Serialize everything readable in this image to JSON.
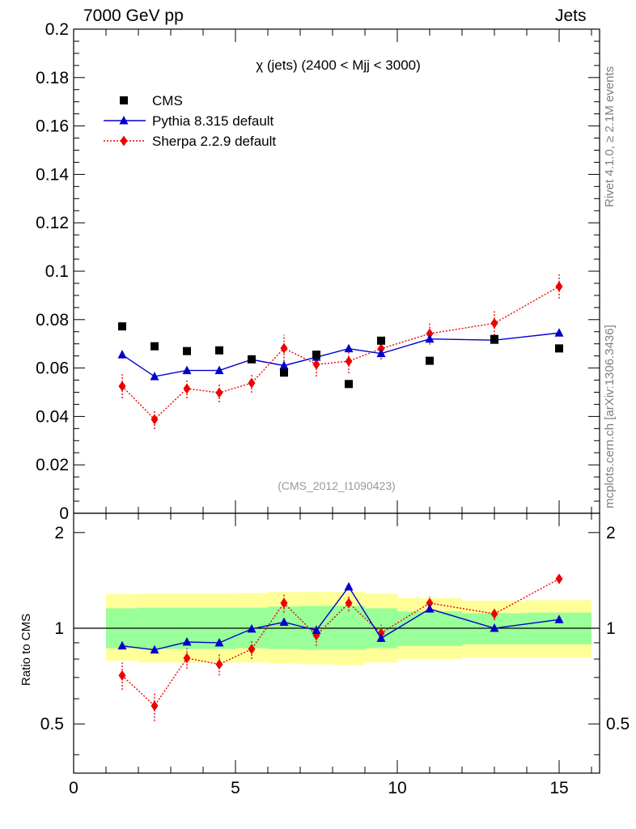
{
  "header": {
    "left": "7000 GeV pp",
    "right": "Jets"
  },
  "side_labels": {
    "rivet": "Rivet 4.1.0, ≥ 2.1M events",
    "mcplots": "mcplots.cern.ch [arXiv:1306.3436]"
  },
  "chart_data": {
    "type": "scatter",
    "title": "χ (jets) (2400 < Mjj < 3000)",
    "watermark": "(CMS_2012_I1090423)",
    "xlabel": "",
    "ylabel": "",
    "xlim": [
      0,
      16.25
    ],
    "main": {
      "ylim": [
        0,
        0.2
      ],
      "yticks": [
        "0",
        "0.02",
        "0.04",
        "0.06",
        "0.08",
        "0.1",
        "0.12",
        "0.14",
        "0.16",
        "0.18",
        "0.2"
      ],
      "legend_position": "top-left"
    },
    "ratio": {
      "ylabel": "Ratio to CMS",
      "ylim": [
        0.35,
        2.3
      ],
      "yticks": [
        "0.5",
        "1",
        "2"
      ],
      "xticks": [
        "0",
        "5",
        "10",
        "15"
      ]
    },
    "colors": {
      "data": "#000000",
      "pythia": "#0000cc",
      "sherpa": "#ee0000",
      "band_inner": "#99ff99",
      "band_outer": "#ffff99"
    },
    "bins": [
      [
        1,
        2
      ],
      [
        2,
        3
      ],
      [
        3,
        4
      ],
      [
        4,
        5
      ],
      [
        5,
        6
      ],
      [
        6,
        7
      ],
      [
        7,
        8
      ],
      [
        8,
        9
      ],
      [
        9,
        10
      ],
      [
        10,
        12
      ],
      [
        12,
        14
      ],
      [
        14,
        16
      ]
    ],
    "x": [
      1.5,
      2.5,
      3.5,
      4.5,
      5.5,
      6.5,
      7.5,
      8.5,
      9.5,
      11,
      13,
      15
    ],
    "series": [
      {
        "name": "CMS",
        "values": [
          0.0772,
          0.069,
          0.067,
          0.0673,
          0.0636,
          0.0581,
          0.0655,
          0.0534,
          0.0713,
          0.063,
          0.072,
          0.0681
        ]
      },
      {
        "name": "Pythia 8.315 default",
        "values": [
          0.0655,
          0.0565,
          0.059,
          0.059,
          0.0635,
          0.061,
          0.0645,
          0.068,
          0.066,
          0.072,
          0.0715,
          0.0745
        ],
        "errors": [
          0.0016,
          0.0013,
          0.0012,
          0.0012,
          0.0012,
          0.0012,
          0.0012,
          0.0014,
          0.0014,
          0.001,
          0.0008,
          0.0008
        ],
        "ratio": [
          0.88,
          0.855,
          0.905,
          0.9,
          0.995,
          1.045,
          0.985,
          1.35,
          0.93,
          1.15,
          1.0,
          1.065
        ],
        "ratio_errors": [
          0.02,
          0.02,
          0.02,
          0.02,
          0.02,
          0.02,
          0.02,
          0.03,
          0.02,
          0.015,
          0.012,
          0.012
        ]
      },
      {
        "name": "Sherpa 2.2.9 default",
        "values": [
          0.0525,
          0.0388,
          0.0515,
          0.0498,
          0.0538,
          0.0682,
          0.0615,
          0.0628,
          0.068,
          0.0742,
          0.0785,
          0.0937
        ],
        "errors": [
          0.005,
          0.004,
          0.004,
          0.004,
          0.004,
          0.0055,
          0.005,
          0.005,
          0.0045,
          0.0045,
          0.005,
          0.005
        ],
        "ratio": [
          0.71,
          0.57,
          0.805,
          0.77,
          0.86,
          1.2,
          0.95,
          1.2,
          0.965,
          1.2,
          1.11,
          1.43
        ],
        "ratio_errors": [
          0.07,
          0.06,
          0.06,
          0.06,
          0.06,
          0.08,
          0.07,
          0.07,
          0.06,
          0.06,
          0.05,
          0.05
        ]
      }
    ],
    "ratio_band": {
      "inner": [
        [
          0.865,
          1.155
        ],
        [
          0.86,
          1.16
        ],
        [
          0.86,
          1.16
        ],
        [
          0.86,
          1.16
        ],
        [
          0.865,
          1.16
        ],
        [
          0.86,
          1.17
        ],
        [
          0.855,
          1.175
        ],
        [
          0.855,
          1.175
        ],
        [
          0.865,
          1.155
        ],
        [
          0.88,
          1.13
        ],
        [
          0.89,
          1.115
        ],
        [
          0.89,
          1.12
        ]
      ],
      "outer": [
        [
          0.79,
          1.28
        ],
        [
          0.78,
          1.285
        ],
        [
          0.78,
          1.285
        ],
        [
          0.78,
          1.285
        ],
        [
          0.78,
          1.29
        ],
        [
          0.775,
          1.3
        ],
        [
          0.77,
          1.3
        ],
        [
          0.765,
          1.3
        ],
        [
          0.78,
          1.285
        ],
        [
          0.8,
          1.245
        ],
        [
          0.81,
          1.22
        ],
        [
          0.81,
          1.225
        ]
      ]
    }
  }
}
